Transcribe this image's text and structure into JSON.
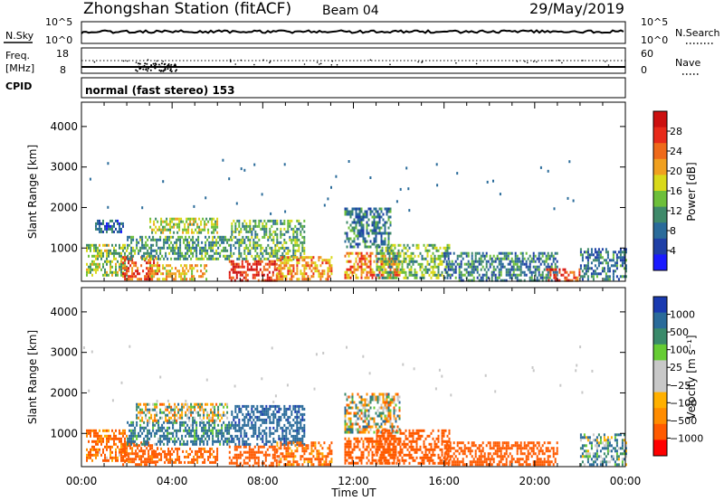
{
  "header": {
    "station": "Zhongshan Station (fitACF)",
    "beam": "Beam 04",
    "date": "29/May/2019"
  },
  "status_panels": {
    "nsky_label": "N.Sky",
    "nsky_ticks": [
      "10^5",
      "10^0"
    ],
    "nsearch_label": "N.Search",
    "nsearch_ticks": [
      "10^5",
      "10^0"
    ],
    "freq_label_1": "Freq.",
    "freq_label_2": "[MHz]",
    "freq_ticks": [
      "18",
      "8"
    ],
    "nave_label": "Nave",
    "nave_ticks": [
      "60",
      "0"
    ],
    "cpid_label": "CPID",
    "cpid_text": "normal (fast stereo) 153"
  },
  "colors": {
    "power_scale": [
      "#1a1aff",
      "#1f3fa6",
      "#2a6b9a",
      "#3f8a6a",
      "#6dbf3a",
      "#d9d91a",
      "#f0a020",
      "#ef6a1a",
      "#e82a1a",
      "#cc1010"
    ],
    "velocity_scale": [
      "#ff0000",
      "#ff5a00",
      "#ff8c00",
      "#ffb000",
      "#c8c8c8",
      "#c8c8c8",
      "#66cc33",
      "#3a8a6a",
      "#2a6b9a",
      "#1a3ab0"
    ]
  },
  "chart_data": [
    {
      "type": "heatmap",
      "name": "power",
      "ylabel": "Slant Range [km]",
      "xlabel": "",
      "x_ticks": [
        "00:00",
        "04:00",
        "08:00",
        "12:00",
        "16:00",
        "20:00",
        "00:00"
      ],
      "xlim_hours": [
        0,
        24
      ],
      "y_ticks": [
        1000,
        2000,
        3000,
        4000
      ],
      "ylim_km": [
        180,
        4600
      ],
      "colorbar_label": "Power [dB]",
      "colorbar_ticks": [
        "28",
        "24",
        "20",
        "16",
        "12",
        "8",
        "4"
      ],
      "colorbar_range": [
        0,
        30
      ],
      "echo_regions": [
        {
          "t0": 0.2,
          "t1": 2.0,
          "r0": 300,
          "r1": 1100,
          "level": 14
        },
        {
          "t0": 0.6,
          "t1": 1.8,
          "r0": 1400,
          "r1": 1700,
          "level": 7
        },
        {
          "t0": 1.8,
          "t1": 3.4,
          "r0": 250,
          "r1": 800,
          "level": 24
        },
        {
          "t0": 2.0,
          "t1": 6.6,
          "r0": 700,
          "r1": 1300,
          "level": 11
        },
        {
          "t0": 3.0,
          "t1": 6.0,
          "r0": 1400,
          "r1": 1750,
          "level": 15
        },
        {
          "t0": 3.0,
          "t1": 5.5,
          "r0": 250,
          "r1": 600,
          "level": 18
        },
        {
          "t0": 6.5,
          "t1": 8.6,
          "r0": 220,
          "r1": 700,
          "level": 26
        },
        {
          "t0": 6.6,
          "t1": 9.8,
          "r0": 700,
          "r1": 1700,
          "level": 12
        },
        {
          "t0": 8.6,
          "t1": 11.0,
          "r0": 250,
          "r1": 800,
          "level": 20
        },
        {
          "t0": 11.6,
          "t1": 14.0,
          "r0": 250,
          "r1": 900,
          "level": 22
        },
        {
          "t0": 11.6,
          "t1": 13.6,
          "r0": 1000,
          "r1": 2000,
          "level": 9
        },
        {
          "t0": 13.0,
          "t1": 16.2,
          "r0": 250,
          "r1": 1100,
          "level": 13
        },
        {
          "t0": 16.0,
          "t1": 21.0,
          "r0": 220,
          "r1": 900,
          "level": 9
        },
        {
          "t0": 20.5,
          "t1": 22.0,
          "r0": 200,
          "r1": 500,
          "level": 25
        },
        {
          "t0": 22.0,
          "t1": 24.0,
          "r0": 250,
          "r1": 1000,
          "level": 8
        }
      ]
    },
    {
      "type": "heatmap",
      "name": "velocity",
      "ylabel": "Slant Range [km]",
      "xlabel": "Time UT",
      "x_ticks": [
        "00:00",
        "04:00",
        "08:00",
        "12:00",
        "16:00",
        "20:00",
        "00:00"
      ],
      "xlim_hours": [
        0,
        24
      ],
      "y_ticks": [
        1000,
        2000,
        3000,
        4000
      ],
      "ylim_km": [
        180,
        4600
      ],
      "colorbar_label": "Velocity [m s⁻¹]",
      "colorbar_ticks": [
        "1000",
        "500",
        "100",
        "25",
        "−25",
        "−100",
        "−500",
        "−1000"
      ],
      "colorbar_range": [
        -1000,
        1000
      ],
      "echo_regions": [
        {
          "t0": 0.2,
          "t1": 2.0,
          "r0": 300,
          "r1": 1100,
          "level": -150
        },
        {
          "t0": 1.8,
          "t1": 3.4,
          "r0": 250,
          "r1": 800,
          "level": -200
        },
        {
          "t0": 2.0,
          "t1": 6.6,
          "r0": 700,
          "r1": 1300,
          "level": 150
        },
        {
          "t0": 2.4,
          "t1": 6.4,
          "r0": 1300,
          "r1": 1750,
          "level": 0
        },
        {
          "t0": 3.0,
          "t1": 6.0,
          "r0": 300,
          "r1": 650,
          "level": -180
        },
        {
          "t0": 6.5,
          "t1": 8.6,
          "r0": 220,
          "r1": 700,
          "level": -300
        },
        {
          "t0": 6.6,
          "t1": 9.8,
          "r0": 700,
          "r1": 1700,
          "level": 400
        },
        {
          "t0": 8.6,
          "t1": 11.0,
          "r0": 250,
          "r1": 800,
          "level": -150
        },
        {
          "t0": 11.6,
          "t1": 14.0,
          "r0": 1000,
          "r1": 2000,
          "level": 0
        },
        {
          "t0": 11.6,
          "t1": 14.0,
          "r0": 250,
          "r1": 900,
          "level": -200
        },
        {
          "t0": 13.0,
          "t1": 16.2,
          "r0": 250,
          "r1": 1100,
          "level": -300
        },
        {
          "t0": 16.0,
          "t1": 21.0,
          "r0": 220,
          "r1": 800,
          "level": -250
        },
        {
          "t0": 22.0,
          "t1": 24.0,
          "r0": 250,
          "r1": 1000,
          "level": 80
        }
      ]
    }
  ]
}
